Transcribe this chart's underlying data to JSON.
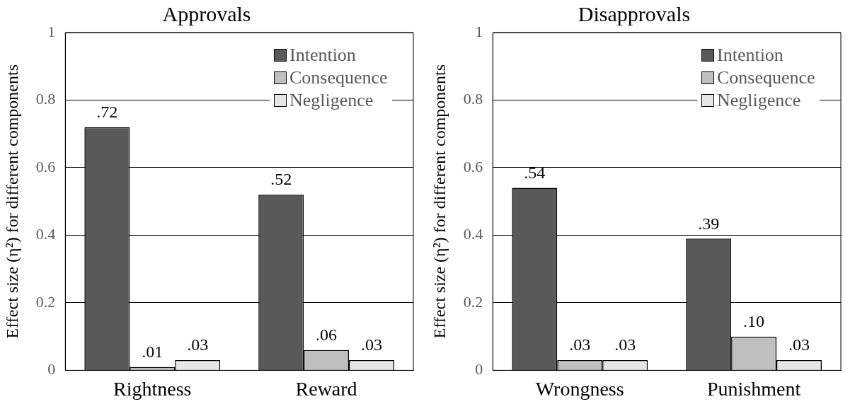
{
  "chart_data": [
    {
      "type": "bar",
      "title": "Approvals",
      "ylabel": "Effect size (η²) for different components",
      "categories": [
        "Rightness",
        "Reward"
      ],
      "series": [
        {
          "name": "Intention",
          "color": "#595959",
          "values": [
            0.72,
            0.52
          ],
          "value_labels": [
            ".72",
            ".52"
          ]
        },
        {
          "name": "Consequence",
          "color": "#bfbfbf",
          "values": [
            0.01,
            0.06
          ],
          "value_labels": [
            ".01",
            ".06"
          ]
        },
        {
          "name": "Negligence",
          "color": "#e6e6e6",
          "values": [
            0.03,
            0.03
          ],
          "value_labels": [
            ".03",
            ".03"
          ]
        }
      ],
      "ylim": [
        0,
        1
      ],
      "yticks": [
        0,
        0.2,
        0.4,
        0.6,
        0.8,
        1
      ],
      "grid": "y",
      "legend": "top right"
    },
    {
      "type": "bar",
      "title": "Disapprovals",
      "ylabel": "Effect size (η²) for different components",
      "categories": [
        "Wrongness",
        "Punishment"
      ],
      "series": [
        {
          "name": "Intention",
          "color": "#595959",
          "values": [
            0.54,
            0.39
          ],
          "value_labels": [
            ".54",
            ".39"
          ]
        },
        {
          "name": "Consequence",
          "color": "#bfbfbf",
          "values": [
            0.03,
            0.1
          ],
          "value_labels": [
            ".03",
            ".10"
          ]
        },
        {
          "name": "Negligence",
          "color": "#e6e6e6",
          "values": [
            0.03,
            0.03
          ],
          "value_labels": [
            ".03",
            ".03"
          ]
        }
      ],
      "ylim": [
        0,
        1
      ],
      "yticks": [
        0,
        0.2,
        0.4,
        0.6,
        0.8,
        1
      ],
      "grid": "y",
      "legend": "top right"
    }
  ]
}
